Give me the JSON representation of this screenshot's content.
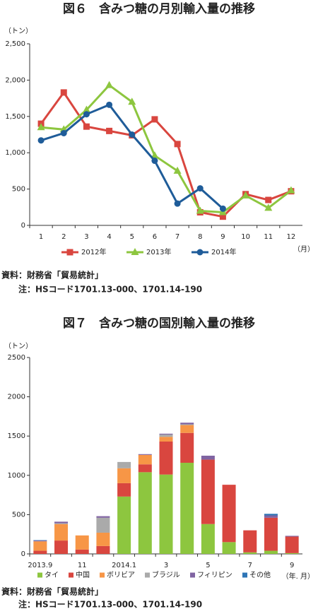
{
  "chart_data": [
    {
      "type": "line",
      "title": "図６　含みつ糖の月別輸入量の推移",
      "y_label": "（トン）",
      "x_label": "（月）",
      "categories": [
        "1",
        "2",
        "3",
        "4",
        "5",
        "6",
        "7",
        "8",
        "9",
        "10",
        "11",
        "12"
      ],
      "ylim": [
        0,
        2500
      ],
      "yticks": [
        0,
        500,
        {
          "value": 1000,
          "label": "1,000"
        },
        {
          "value": 1500,
          "label": "1,500"
        },
        {
          "value": 2000,
          "label": "2,000"
        },
        {
          "value": 2500,
          "label": "2,500"
        }
      ],
      "grid": false,
      "series": [
        {
          "name": "2012年",
          "color": "#d9463f",
          "marker": "square",
          "values": [
            1400,
            1830,
            1360,
            1300,
            1240,
            1460,
            1120,
            180,
            120,
            430,
            350,
            470
          ]
        },
        {
          "name": "2013年",
          "color": "#8dc63f",
          "marker": "triangle",
          "values": [
            1350,
            1320,
            1590,
            1930,
            1700,
            960,
            750,
            200,
            180,
            410,
            240,
            480
          ]
        },
        {
          "name": "2014年",
          "color": "#1f5c99",
          "marker": "circle",
          "values": [
            1170,
            1270,
            1530,
            1660,
            1250,
            890,
            300,
            510,
            230,
            null,
            null,
            null
          ]
        }
      ],
      "source": "資料：財務省「貿易統計」",
      "note": "注：HSコード1701.13-000、1701.14-190"
    },
    {
      "type": "stacked_bar",
      "title": "図７　含みつ糖の国別輸入量の推移",
      "y_label": "（トン）",
      "x_label": "（年. 月）",
      "categories": [
        "2013.9",
        null,
        "11",
        null,
        "2014.1",
        null,
        "3",
        null,
        "5",
        null,
        "7",
        null,
        "9"
      ],
      "ylim": [
        0,
        2500
      ],
      "yticks": [
        0,
        500,
        1000,
        1500,
        2000,
        2500
      ],
      "grid": false,
      "series": [
        {
          "name": "タイ",
          "color": "#8dc63f",
          "values": [
            0,
            0,
            0,
            0,
            730,
            1040,
            1010,
            1160,
            380,
            150,
            20,
            40,
            10
          ]
        },
        {
          "name": "中国",
          "color": "#d9463f",
          "values": [
            40,
            170,
            55,
            100,
            170,
            100,
            420,
            380,
            820,
            730,
            280,
            420,
            210
          ]
        },
        {
          "name": "ボリビア",
          "color": "#f79646",
          "values": [
            120,
            210,
            180,
            170,
            190,
            120,
            60,
            100,
            0,
            0,
            0,
            0,
            0
          ]
        },
        {
          "name": "ブラジル",
          "color": "#aaaaaa",
          "values": [
            0,
            10,
            0,
            190,
            80,
            0,
            30,
            10,
            0,
            0,
            0,
            0,
            0
          ]
        },
        {
          "name": "フィリピン",
          "color": "#8064a2",
          "values": [
            10,
            20,
            0,
            20,
            0,
            10,
            10,
            20,
            50,
            0,
            0,
            30,
            10
          ]
        },
        {
          "name": "その他",
          "color": "#2e75b6",
          "values": [
            5,
            0,
            0,
            0,
            0,
            0,
            0,
            0,
            0,
            0,
            0,
            20,
            0
          ]
        }
      ],
      "source": "資料：財務省「貿易統計」",
      "note": "注：HSコード1701.13-000、1701.14-190"
    }
  ]
}
